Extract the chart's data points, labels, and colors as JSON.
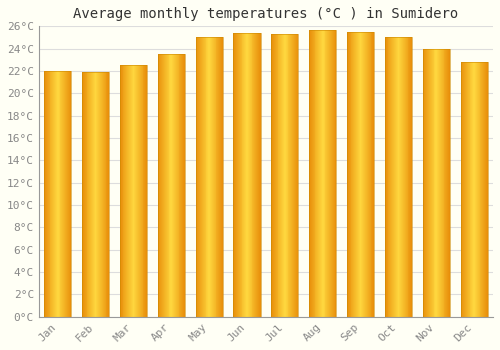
{
  "title": "Average monthly temperatures (°C ) in Sumidero",
  "months": [
    "Jan",
    "Feb",
    "Mar",
    "Apr",
    "May",
    "Jun",
    "Jul",
    "Aug",
    "Sep",
    "Oct",
    "Nov",
    "Dec"
  ],
  "temperatures": [
    22.0,
    21.9,
    22.5,
    23.5,
    25.0,
    25.4,
    25.3,
    25.7,
    25.5,
    25.0,
    24.0,
    22.8
  ],
  "bar_color_left": "#E8900A",
  "bar_color_center": "#FFD060",
  "bar_color_right": "#E8900A",
  "background_color": "#FFFFF5",
  "grid_color": "#DDDDDD",
  "ylim": [
    0,
    26
  ],
  "yticks": [
    0,
    2,
    4,
    6,
    8,
    10,
    12,
    14,
    16,
    18,
    20,
    22,
    24,
    26
  ],
  "title_fontsize": 10,
  "tick_fontsize": 8,
  "tick_color": "#888888",
  "title_color": "#333333",
  "bar_width": 0.72
}
